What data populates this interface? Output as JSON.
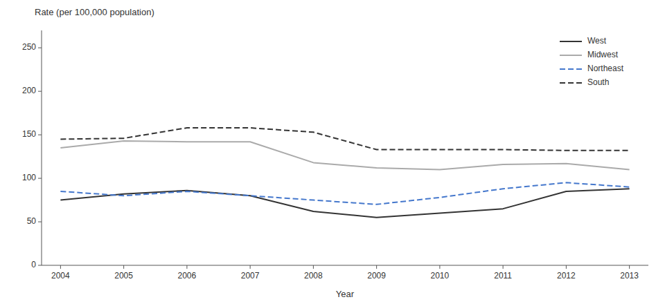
{
  "chart_data": {
    "type": "line",
    "xlabel": "Year",
    "ylabel": "Rate (per 100,000 population)",
    "x": [
      2004,
      2005,
      2006,
      2007,
      2008,
      2009,
      2010,
      2011,
      2012,
      2013
    ],
    "xlim": [
      2003.7,
      2013.3
    ],
    "xticks": [
      2004,
      2005,
      2006,
      2007,
      2008,
      2009,
      2010,
      2011,
      2012,
      2013
    ],
    "ylim": [
      0,
      270
    ],
    "yticks": [
      0,
      50,
      100,
      150,
      200,
      250
    ],
    "grid": false,
    "legend": "upper right",
    "series": [
      {
        "name": "West",
        "color": "#333333",
        "line_style": "solid",
        "values": [
          75,
          82,
          86,
          80,
          62,
          55,
          60,
          65,
          85,
          88
        ]
      },
      {
        "name": "Midwest",
        "color": "#aaaaaa",
        "line_style": "solid",
        "values": [
          135,
          143,
          142,
          142,
          118,
          112,
          110,
          116,
          117,
          110
        ]
      },
      {
        "name": "Northeast",
        "color": "#4477cc",
        "line_style": "dashed",
        "values": [
          85,
          80,
          85,
          80,
          75,
          70,
          78,
          88,
          95,
          90
        ]
      },
      {
        "name": "South",
        "color": "#333333",
        "line_style": "dashed",
        "values": [
          145,
          146,
          158,
          158,
          153,
          133,
          133,
          133,
          132,
          132
        ]
      }
    ]
  }
}
